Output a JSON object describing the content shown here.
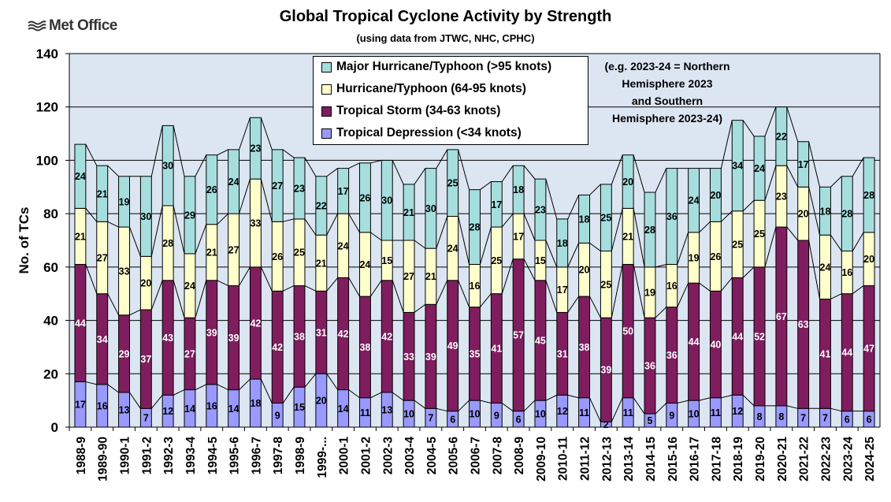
{
  "branding": {
    "logo_text": "Met Office"
  },
  "chart_data": {
    "type": "bar",
    "stacked": true,
    "title": "Global Tropical Cyclone Activity by Strength",
    "subtitle": "(using data from JTWC, NHC, CPHC)",
    "ylabel": "No. of TCs",
    "xlabel": "",
    "ylim": [
      0,
      140
    ],
    "yticks": [
      0,
      20,
      40,
      60,
      80,
      100,
      120,
      140
    ],
    "grid": true,
    "legend_position": "top-center",
    "note": [
      "(e.g. 2023-24 = Northern",
      "Hemisphere 2023",
      "and Southern",
      "Hemisphere 2023-24)"
    ],
    "categories": [
      "1988-9",
      "1989-90",
      "1990-1",
      "1991-2",
      "1992-3",
      "1993-4",
      "1994-5",
      "1995-6",
      "1996-7",
      "1997-8",
      "1998-9",
      "1999-...",
      "2000-1",
      "2001-2",
      "2002-3",
      "2003-4",
      "2004-5",
      "2005-6",
      "2006-7",
      "2007-8",
      "2008-9",
      "2009-10",
      "2010-11",
      "2011-12",
      "2012-13",
      "2013-14",
      "2014-15",
      "2015-16",
      "2016-17",
      "2017-18",
      "2018-19",
      "2019-20",
      "2020-21",
      "2021-22",
      "2022-23",
      "2023-24",
      "2024-25"
    ],
    "series": [
      {
        "name": "Tropical Depression (<34 knots)",
        "color": "#9999ff",
        "values": [
          17,
          16,
          13,
          7,
          12,
          14,
          16,
          14,
          18,
          9,
          15,
          20,
          14,
          11,
          13,
          10,
          7,
          6,
          10,
          9,
          6,
          10,
          12,
          11,
          2,
          11,
          5,
          9,
          10,
          11,
          12,
          8,
          8,
          7,
          7,
          6,
          6
        ]
      },
      {
        "name": "Tropical Storm (34-63 knots)",
        "color": "#7f1d5f",
        "values": [
          44,
          34,
          29,
          37,
          43,
          27,
          39,
          39,
          42,
          42,
          38,
          31,
          42,
          38,
          42,
          33,
          39,
          49,
          35,
          41,
          57,
          45,
          31,
          38,
          39,
          50,
          36,
          36,
          44,
          40,
          44,
          52,
          67,
          63,
          41,
          44,
          47
        ]
      },
      {
        "name": "Hurricane/Typhoon (64-95 knots)",
        "color": "#ffffcc",
        "values": [
          21,
          27,
          33,
          20,
          28,
          24,
          21,
          27,
          33,
          26,
          25,
          21,
          24,
          24,
          15,
          27,
          21,
          24,
          16,
          25,
          17,
          15,
          17,
          20,
          25,
          21,
          19,
          16,
          19,
          26,
          25,
          25,
          23,
          20,
          24,
          16,
          20
        ]
      },
      {
        "name": "Major Hurricane/Typhoon (>95 knots)",
        "color": "#a6dede",
        "values": [
          24,
          21,
          19,
          30,
          30,
          29,
          26,
          24,
          23,
          27,
          23,
          22,
          17,
          26,
          30,
          21,
          30,
          25,
          28,
          17,
          18,
          23,
          18,
          18,
          25,
          20,
          28,
          36,
          24,
          20,
          34,
          24,
          22,
          17,
          18,
          28,
          28
        ]
      }
    ]
  }
}
